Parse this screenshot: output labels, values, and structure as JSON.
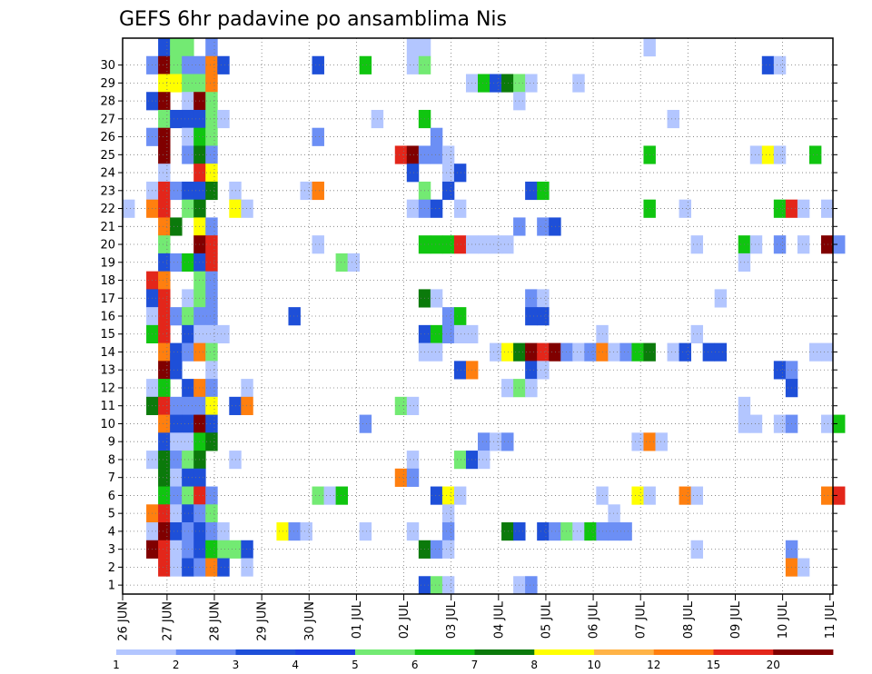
{
  "chart_data": {
    "type": "heatmap",
    "title": "GEFS 6hr padavine po ansamblima Nis",
    "xlabel": "",
    "ylabel": "",
    "x_tick_labels": [
      "26 JUN",
      "27 JUN",
      "28 JUN",
      "29 JUN",
      "30 JUN",
      "01 JUL",
      "02 JUL",
      "03 JUL",
      "04 JUL",
      "05 JUL",
      "06 JUL",
      "07 JUL",
      "08 JUL",
      "09 JUL",
      "10 JUL",
      "11 JUL"
    ],
    "y_tick_labels": [
      "1",
      "2",
      "3",
      "4",
      "5",
      "6",
      "7",
      "8",
      "9",
      "10",
      "11",
      "12",
      "13",
      "14",
      "15",
      "16",
      "17",
      "18",
      "19",
      "20",
      "21",
      "22",
      "23",
      "24",
      "25",
      "26",
      "27",
      "28",
      "29",
      "30"
    ],
    "time_step_hours": 6,
    "grid": true,
    "colorbar_labels": [
      "1",
      "2",
      "3",
      "4",
      "5",
      "6",
      "7",
      "8",
      "10",
      "12",
      "15",
      "20"
    ],
    "colorbar_colors": [
      "#b3c6ff",
      "#6c8ff5",
      "#1e4fd8",
      "#1a3ee0",
      "#73ea73",
      "#10c510",
      "#0b7a0b",
      "#ffff00",
      "#ffb347",
      "#ff7f0f",
      "#e3261a",
      "#800000"
    ],
    "cells": [
      [
        30,
        3,
        3
      ],
      [
        30,
        4,
        5
      ],
      [
        30,
        5,
        5
      ],
      [
        30,
        7,
        2
      ],
      [
        30,
        24,
        1
      ],
      [
        30,
        25,
        1
      ],
      [
        30,
        44,
        1
      ],
      [
        29,
        2,
        2
      ],
      [
        29,
        3,
        12
      ],
      [
        29,
        4,
        5
      ],
      [
        29,
        5,
        2
      ],
      [
        29,
        6,
        2
      ],
      [
        29,
        7,
        10
      ],
      [
        29,
        8,
        3
      ],
      [
        29,
        16,
        3
      ],
      [
        29,
        20,
        6
      ],
      [
        29,
        24,
        1
      ],
      [
        29,
        25,
        5
      ],
      [
        29,
        54,
        3
      ],
      [
        29,
        55,
        1
      ],
      [
        28,
        3,
        8
      ],
      [
        28,
        4,
        8
      ],
      [
        28,
        5,
        5
      ],
      [
        28,
        6,
        5
      ],
      [
        28,
        7,
        10
      ],
      [
        28,
        29,
        1
      ],
      [
        28,
        30,
        6
      ],
      [
        28,
        31,
        3
      ],
      [
        28,
        32,
        7
      ],
      [
        28,
        33,
        5
      ],
      [
        28,
        34,
        1
      ],
      [
        28,
        38,
        1
      ],
      [
        27,
        2,
        3
      ],
      [
        27,
        3,
        12
      ],
      [
        27,
        5,
        1
      ],
      [
        27,
        6,
        12
      ],
      [
        27,
        7,
        5
      ],
      [
        27,
        33,
        1
      ],
      [
        26,
        3,
        5
      ],
      [
        26,
        4,
        3
      ],
      [
        26,
        5,
        3
      ],
      [
        26,
        6,
        3
      ],
      [
        26,
        7,
        5
      ],
      [
        26,
        8,
        1
      ],
      [
        26,
        21,
        1
      ],
      [
        26,
        25,
        6
      ],
      [
        26,
        46,
        1
      ],
      [
        25,
        2,
        2
      ],
      [
        25,
        3,
        12
      ],
      [
        25,
        5,
        1
      ],
      [
        25,
        6,
        6
      ],
      [
        25,
        7,
        5
      ],
      [
        25,
        16,
        2
      ],
      [
        25,
        26,
        2
      ],
      [
        24,
        3,
        12
      ],
      [
        24,
        5,
        2
      ],
      [
        24,
        6,
        7
      ],
      [
        24,
        7,
        2
      ],
      [
        24,
        23,
        11
      ],
      [
        24,
        24,
        12
      ],
      [
        24,
        25,
        2
      ],
      [
        24,
        26,
        2
      ],
      [
        24,
        27,
        1
      ],
      [
        24,
        44,
        6
      ],
      [
        24,
        53,
        1
      ],
      [
        24,
        54,
        8
      ],
      [
        24,
        55,
        1
      ],
      [
        24,
        58,
        6
      ],
      [
        23,
        3,
        1
      ],
      [
        23,
        6,
        11
      ],
      [
        23,
        7,
        8
      ],
      [
        23,
        24,
        3
      ],
      [
        23,
        27,
        1
      ],
      [
        23,
        28,
        3
      ],
      [
        22,
        2,
        1
      ],
      [
        22,
        3,
        11
      ],
      [
        22,
        4,
        2
      ],
      [
        22,
        5,
        3
      ],
      [
        22,
        6,
        3
      ],
      [
        22,
        7,
        7
      ],
      [
        22,
        9,
        1
      ],
      [
        22,
        15,
        1
      ],
      [
        22,
        16,
        10
      ],
      [
        22,
        25,
        5
      ],
      [
        22,
        27,
        3
      ],
      [
        22,
        34,
        3
      ],
      [
        22,
        35,
        6
      ],
      [
        21,
        0,
        1
      ],
      [
        21,
        2,
        10
      ],
      [
        21,
        3,
        11
      ],
      [
        21,
        5,
        5
      ],
      [
        21,
        6,
        7
      ],
      [
        21,
        9,
        8
      ],
      [
        21,
        10,
        1
      ],
      [
        21,
        24,
        1
      ],
      [
        21,
        25,
        2
      ],
      [
        21,
        26,
        3
      ],
      [
        21,
        28,
        1
      ],
      [
        21,
        44,
        6
      ],
      [
        21,
        47,
        1
      ],
      [
        21,
        55,
        6
      ],
      [
        21,
        56,
        11
      ],
      [
        21,
        57,
        1
      ],
      [
        21,
        59,
        1
      ],
      [
        20,
        3,
        10
      ],
      [
        20,
        4,
        7
      ],
      [
        20,
        6,
        8
      ],
      [
        20,
        7,
        2
      ],
      [
        20,
        33,
        2
      ],
      [
        20,
        35,
        2
      ],
      [
        20,
        36,
        3
      ],
      [
        19,
        3,
        5
      ],
      [
        19,
        6,
        12
      ],
      [
        19,
        7,
        11
      ],
      [
        19,
        16,
        1
      ],
      [
        19,
        25,
        6
      ],
      [
        19,
        26,
        6
      ],
      [
        19,
        27,
        6
      ],
      [
        19,
        28,
        11
      ],
      [
        19,
        29,
        1
      ],
      [
        19,
        30,
        1
      ],
      [
        19,
        31,
        1
      ],
      [
        19,
        32,
        1
      ],
      [
        19,
        48,
        1
      ],
      [
        19,
        52,
        6
      ],
      [
        19,
        53,
        1
      ],
      [
        19,
        55,
        2
      ],
      [
        19,
        57,
        1
      ],
      [
        19,
        59,
        12
      ],
      [
        19,
        60,
        2
      ],
      [
        18,
        3,
        3
      ],
      [
        18,
        4,
        2
      ],
      [
        18,
        5,
        6
      ],
      [
        18,
        6,
        3
      ],
      [
        18,
        7,
        11
      ],
      [
        18,
        18,
        5
      ],
      [
        18,
        19,
        1
      ],
      [
        18,
        52,
        1
      ],
      [
        17,
        2,
        11
      ],
      [
        17,
        3,
        10
      ],
      [
        17,
        6,
        5
      ],
      [
        17,
        7,
        2
      ],
      [
        16,
        2,
        3
      ],
      [
        16,
        3,
        11
      ],
      [
        16,
        5,
        1
      ],
      [
        16,
        6,
        5
      ],
      [
        16,
        7,
        2
      ],
      [
        16,
        25,
        7
      ],
      [
        16,
        26,
        1
      ],
      [
        16,
        34,
        2
      ],
      [
        16,
        35,
        1
      ],
      [
        16,
        50,
        1
      ],
      [
        15,
        2,
        1
      ],
      [
        15,
        3,
        11
      ],
      [
        15,
        4,
        2
      ],
      [
        15,
        5,
        5
      ],
      [
        15,
        6,
        2
      ],
      [
        15,
        7,
        2
      ],
      [
        15,
        14,
        3
      ],
      [
        15,
        27,
        2
      ],
      [
        15,
        28,
        6
      ],
      [
        15,
        34,
        3
      ],
      [
        15,
        35,
        3
      ],
      [
        14,
        2,
        6
      ],
      [
        14,
        3,
        11
      ],
      [
        14,
        5,
        3
      ],
      [
        14,
        6,
        1
      ],
      [
        14,
        7,
        1
      ],
      [
        14,
        8,
        1
      ],
      [
        14,
        25,
        3
      ],
      [
        14,
        26,
        6
      ],
      [
        14,
        27,
        2
      ],
      [
        14,
        28,
        1
      ],
      [
        14,
        29,
        1
      ],
      [
        14,
        40,
        1
      ],
      [
        14,
        48,
        1
      ],
      [
        13,
        3,
        10
      ],
      [
        13,
        4,
        3
      ],
      [
        13,
        5,
        2
      ],
      [
        13,
        6,
        10
      ],
      [
        13,
        7,
        5
      ],
      [
        13,
        25,
        1
      ],
      [
        13,
        26,
        1
      ],
      [
        13,
        31,
        1
      ],
      [
        13,
        32,
        8
      ],
      [
        13,
        33,
        7
      ],
      [
        13,
        34,
        12
      ],
      [
        13,
        35,
        11
      ],
      [
        13,
        36,
        12
      ],
      [
        13,
        37,
        2
      ],
      [
        13,
        38,
        1
      ],
      [
        13,
        39,
        2
      ],
      [
        13,
        40,
        10
      ],
      [
        13,
        41,
        1
      ],
      [
        13,
        42,
        2
      ],
      [
        13,
        43,
        6
      ],
      [
        13,
        44,
        7
      ],
      [
        13,
        46,
        1
      ],
      [
        13,
        47,
        3
      ],
      [
        13,
        49,
        3
      ],
      [
        13,
        50,
        3
      ],
      [
        13,
        58,
        1
      ],
      [
        13,
        59,
        1
      ],
      [
        12,
        3,
        12
      ],
      [
        12,
        4,
        3
      ],
      [
        12,
        7,
        1
      ],
      [
        12,
        28,
        3
      ],
      [
        12,
        29,
        10
      ],
      [
        12,
        34,
        3
      ],
      [
        12,
        35,
        1
      ],
      [
        12,
        55,
        3
      ],
      [
        12,
        56,
        2
      ],
      [
        11,
        2,
        1
      ],
      [
        11,
        3,
        6
      ],
      [
        11,
        5,
        3
      ],
      [
        11,
        6,
        10
      ],
      [
        11,
        7,
        2
      ],
      [
        11,
        10,
        1
      ],
      [
        11,
        32,
        1
      ],
      [
        11,
        33,
        5
      ],
      [
        11,
        34,
        1
      ],
      [
        11,
        56,
        3
      ],
      [
        10,
        2,
        7
      ],
      [
        10,
        3,
        11
      ],
      [
        10,
        4,
        2
      ],
      [
        10,
        5,
        2
      ],
      [
        10,
        6,
        2
      ],
      [
        10,
        7,
        8
      ],
      [
        10,
        9,
        3
      ],
      [
        10,
        10,
        10
      ],
      [
        10,
        23,
        5
      ],
      [
        10,
        24,
        1
      ],
      [
        10,
        52,
        1
      ],
      [
        9,
        3,
        10
      ],
      [
        9,
        4,
        3
      ],
      [
        9,
        5,
        3
      ],
      [
        9,
        6,
        12
      ],
      [
        9,
        7,
        3
      ],
      [
        9,
        20,
        2
      ],
      [
        9,
        52,
        1
      ],
      [
        9,
        53,
        1
      ],
      [
        9,
        55,
        1
      ],
      [
        9,
        56,
        2
      ],
      [
        9,
        59,
        1
      ],
      [
        9,
        60,
        6
      ],
      [
        8,
        3,
        3
      ],
      [
        8,
        4,
        1
      ],
      [
        8,
        5,
        1
      ],
      [
        8,
        6,
        6
      ],
      [
        8,
        7,
        7
      ],
      [
        8,
        30,
        2
      ],
      [
        8,
        31,
        1
      ],
      [
        8,
        32,
        2
      ],
      [
        8,
        43,
        1
      ],
      [
        8,
        44,
        10
      ],
      [
        8,
        45,
        1
      ],
      [
        7,
        2,
        1
      ],
      [
        7,
        3,
        7
      ],
      [
        7,
        4,
        2
      ],
      [
        7,
        5,
        5
      ],
      [
        7,
        6,
        7
      ],
      [
        7,
        9,
        1
      ],
      [
        7,
        24,
        1
      ],
      [
        7,
        28,
        5
      ],
      [
        7,
        29,
        3
      ],
      [
        7,
        30,
        1
      ],
      [
        6,
        3,
        7
      ],
      [
        6,
        4,
        1
      ],
      [
        6,
        5,
        3
      ],
      [
        6,
        6,
        3
      ],
      [
        6,
        23,
        10
      ],
      [
        6,
        24,
        2
      ],
      [
        5,
        3,
        6
      ],
      [
        5,
        4,
        2
      ],
      [
        5,
        5,
        5
      ],
      [
        5,
        6,
        11
      ],
      [
        5,
        7,
        2
      ],
      [
        5,
        16,
        5
      ],
      [
        5,
        17,
        1
      ],
      [
        5,
        18,
        6
      ],
      [
        5,
        26,
        3
      ],
      [
        5,
        27,
        8
      ],
      [
        5,
        28,
        1
      ],
      [
        5,
        40,
        1
      ],
      [
        5,
        43,
        8
      ],
      [
        5,
        44,
        1
      ],
      [
        5,
        47,
        10
      ],
      [
        5,
        48,
        1
      ],
      [
        5,
        59,
        10
      ],
      [
        5,
        60,
        11
      ],
      [
        4,
        2,
        10
      ],
      [
        4,
        3,
        11
      ],
      [
        4,
        4,
        1
      ],
      [
        4,
        5,
        3
      ],
      [
        4,
        6,
        2
      ],
      [
        4,
        7,
        5
      ],
      [
        4,
        27,
        1
      ],
      [
        4,
        41,
        1
      ],
      [
        3,
        2,
        1
      ],
      [
        3,
        3,
        12
      ],
      [
        3,
        4,
        3
      ],
      [
        3,
        5,
        2
      ],
      [
        3,
        6,
        3
      ],
      [
        3,
        7,
        2
      ],
      [
        3,
        8,
        1
      ],
      [
        3,
        13,
        8
      ],
      [
        3,
        14,
        2
      ],
      [
        3,
        15,
        1
      ],
      [
        3,
        20,
        1
      ],
      [
        3,
        24,
        1
      ],
      [
        3,
        27,
        2
      ],
      [
        3,
        32,
        7
      ],
      [
        3,
        33,
        3
      ],
      [
        3,
        35,
        3
      ],
      [
        3,
        36,
        2
      ],
      [
        3,
        37,
        5
      ],
      [
        3,
        38,
        1
      ],
      [
        3,
        39,
        6
      ],
      [
        3,
        40,
        2
      ],
      [
        3,
        41,
        2
      ],
      [
        3,
        42,
        2
      ],
      [
        2,
        2,
        12
      ],
      [
        2,
        3,
        11
      ],
      [
        2,
        4,
        1
      ],
      [
        2,
        5,
        2
      ],
      [
        2,
        6,
        3
      ],
      [
        2,
        7,
        6
      ],
      [
        2,
        8,
        5
      ],
      [
        2,
        9,
        5
      ],
      [
        2,
        10,
        3
      ],
      [
        2,
        25,
        7
      ],
      [
        2,
        26,
        2
      ],
      [
        2,
        27,
        1
      ],
      [
        2,
        48,
        1
      ],
      [
        2,
        56,
        2
      ],
      [
        1,
        3,
        11
      ],
      [
        1,
        4,
        1
      ],
      [
        1,
        5,
        3
      ],
      [
        1,
        6,
        2
      ],
      [
        1,
        7,
        10
      ],
      [
        1,
        8,
        3
      ],
      [
        1,
        10,
        1
      ],
      [
        1,
        56,
        10
      ],
      [
        1,
        57,
        1
      ],
      [
        0,
        25,
        3
      ],
      [
        0,
        26,
        5
      ],
      [
        0,
        27,
        1
      ],
      [
        0,
        33,
        1
      ],
      [
        0,
        34,
        2
      ]
    ]
  }
}
